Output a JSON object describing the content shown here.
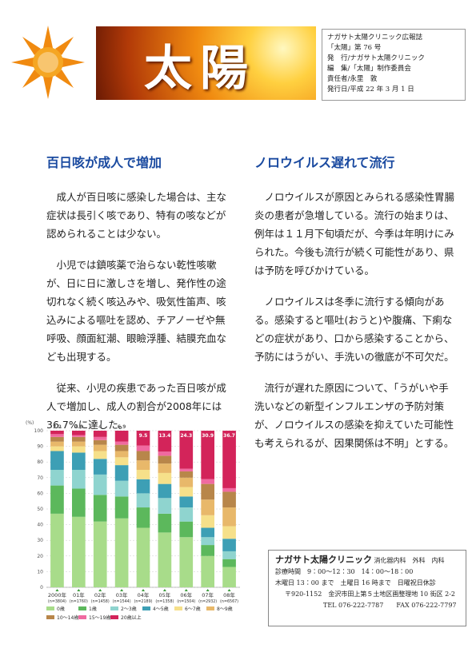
{
  "header": {
    "banner_title": "太陽",
    "info": [
      "ナガサト太陽クリニック広報誌",
      "「太陽」第 76 号",
      "発　行/ナガサト太陽クリニック",
      "編　集/「太陽」制作委員会",
      "責任者/永里　敦",
      "発行日/平成 22 年 3 月 1 日"
    ]
  },
  "articles": [
    {
      "title": "百日咳が成人で増加",
      "paragraphs": [
        "成人が百日咳に感染した場合は、主な症状は長引く咳であり、特有の咳などが認められることは少ない。",
        "小児では鎮咳薬で治らない乾性咳嗽が、日に日に激しさを増し、発作性の途切れなく続く咳込みや、吸気性笛声、咳込みによる嘔吐を認め、チアノーゼや無呼吸、顔面紅潮、眼瞼浮腫、結膜充血なども出現する。",
        "従来、小児の疾患であった百日咳が成人で増加し、成人の割合が2008年には36.7%に達した。"
      ]
    },
    {
      "title": "ノロウイルス遅れて流行",
      "paragraphs": [
        "ノロウイルスが原因とみられる感染性胃腸炎の患者が急増している。流行の始まりは、例年は１１月下旬頃だが、今季は年明けにみられた。今後も流行が続く可能性があり、県は予防を呼びかけている。",
        "ノロウイルスは冬季に流行する傾向がある。感染すると嘔吐(おうと)や腹痛、下痢などの症状があり、口から感染することから、予防にはうがい、手洗いの徹底が不可欠だ。",
        "流行が遅れた原因について、「うがいや手洗いなどの新型インフルエンザの予防対策が、ノロウイルスの感染を抑えていた可能性も考えられるが、因果関係は不明」とする。"
      ]
    }
  ],
  "chart_data": {
    "type": "stacked_bar",
    "y_unit_label": "(%)",
    "categories": [
      "2000年",
      "01年",
      "02年",
      "03年",
      "04年",
      "05年",
      "06年",
      "07年",
      "08年"
    ],
    "n_labels": [
      "(n=3804)",
      "(n=1760)",
      "(n=1458)",
      "(n=1544)",
      "(n=2189)",
      "(n=1358)",
      "(n=1504)",
      "(n=2932)",
      "(n=6567)"
    ],
    "ylim": [
      0,
      100
    ],
    "yticks": [
      0,
      10,
      20,
      30,
      40,
      50,
      60,
      70,
      80,
      90,
      100
    ],
    "grid": true,
    "series": [
      {
        "name": "0歳",
        "color": "#a8dc8a",
        "values": [
          47,
          45,
          42,
          44,
          38,
          35,
          32,
          20,
          13
        ]
      },
      {
        "name": "1歳",
        "color": "#5cb85c",
        "values": [
          18,
          18,
          17,
          14,
          13,
          12,
          10,
          7,
          5
        ]
      },
      {
        "name": "2〜3歳",
        "color": "#8fd4cf",
        "values": [
          10,
          12,
          13,
          10,
          9,
          10,
          9,
          5,
          5
        ]
      },
      {
        "name": "4〜5歳",
        "color": "#3d9fb5",
        "values": [
          12,
          11,
          10,
          10,
          9,
          9,
          7,
          6,
          8
        ]
      },
      {
        "name": "6〜7歳",
        "color": "#f6e08a",
        "values": [
          3,
          4,
          5,
          5,
          6,
          7,
          6,
          8,
          8
        ]
      },
      {
        "name": "8〜9歳",
        "color": "#e8b86a",
        "values": [
          3,
          3,
          4,
          4,
          6,
          6,
          6,
          10,
          12
        ]
      },
      {
        "name": "10〜14歳",
        "color": "#b8864a",
        "values": [
          3,
          3,
          3,
          4,
          6,
          5,
          4,
          10,
          10
        ]
      },
      {
        "name": "15〜19歳",
        "color": "#f06aa0",
        "values": [
          1.8,
          1.2,
          2,
          2.1,
          3.5,
          2.6,
          1.7,
          3.1,
          2.3
        ]
      },
      {
        "name": "20歳以上",
        "color": "#d3245a",
        "values": [
          2.2,
          2.8,
          4.0,
          6.9,
          9.5,
          13.4,
          24.3,
          30.9,
          36.7
        ],
        "data_labels": true
      }
    ]
  },
  "clinic": {
    "name": "ナガサト太陽クリニック",
    "departments": "消化器内科　外科　内科",
    "lines": [
      "診療時間　9：00〜12：30　14：00〜18：00",
      "木曜日 13：00 まで　土曜日 16 時まで　日曜祝日休診",
      "〒920-1152　金沢市田上第５土地区画整理地 10 街区 2-2",
      "TEL 076-222-7787　　FAX 076-222-7797"
    ]
  }
}
